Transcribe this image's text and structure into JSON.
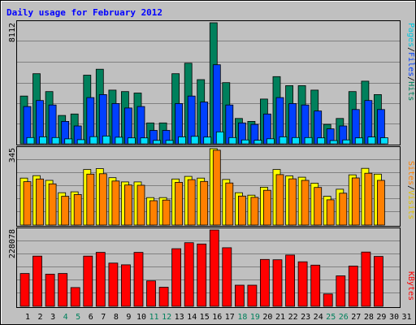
{
  "chart_data": [
    {
      "type": "bar",
      "title": "Daily usage for February 2012",
      "ymax_label": "8112",
      "categories": [
        "1",
        "2",
        "3",
        "4",
        "5",
        "6",
        "7",
        "8",
        "9",
        "10",
        "11",
        "12",
        "13",
        "14",
        "15",
        "16",
        "17",
        "18",
        "19",
        "20",
        "21",
        "22",
        "23",
        "24",
        "25",
        "26",
        "27",
        "28",
        "29",
        "30",
        "31"
      ],
      "weekend_days": [
        "4",
        "5",
        "11",
        "12",
        "18",
        "19",
        "25",
        "26"
      ],
      "ylim": [
        0,
        8112
      ],
      "series": [
        {
          "name": "Hits",
          "color": "#00805C",
          "values": [
            3200,
            4700,
            3500,
            1900,
            2000,
            4600,
            5000,
            3600,
            3500,
            3400,
            1400,
            1400,
            4700,
            5400,
            4300,
            8112,
            4100,
            1700,
            1500,
            3000,
            4500,
            3900,
            3900,
            3600,
            1300,
            1700,
            3500,
            4200,
            3300,
            0,
            0
          ]
        },
        {
          "name": "Files",
          "color": "#0040FF",
          "values": [
            2500,
            2900,
            2600,
            1500,
            1200,
            3100,
            3300,
            2700,
            2400,
            2500,
            900,
            900,
            2700,
            3200,
            2800,
            5300,
            2600,
            1400,
            1300,
            2000,
            3100,
            2700,
            2600,
            2200,
            1000,
            1200,
            2300,
            2900,
            2300,
            0,
            0
          ]
        },
        {
          "name": "Pages",
          "color": "#00E0FF",
          "values": [
            420,
            470,
            420,
            330,
            280,
            480,
            520,
            440,
            400,
            400,
            230,
            230,
            470,
            500,
            450,
            800,
            420,
            260,
            240,
            340,
            470,
            420,
            420,
            400,
            220,
            260,
            400,
            460,
            410,
            0,
            0
          ]
        }
      ],
      "legend": [
        {
          "text": "Pages",
          "color": "#00C8E0"
        },
        {
          "text": "Files",
          "color": "#0040FF"
        },
        {
          "text": "Hits",
          "color": "#00805C"
        }
      ]
    },
    {
      "type": "bar",
      "ymax_label": "345",
      "ylim": [
        0,
        345
      ],
      "series": [
        {
          "name": "Visits",
          "color": "#FFFF00",
          "values": [
            212,
            223,
            202,
            146,
            150,
            251,
            255,
            214,
            195,
            195,
            124,
            124,
            208,
            220,
            212,
            345,
            206,
            146,
            135,
            171,
            251,
            222,
            216,
            189,
            130,
            162,
            227,
            256,
            230,
            0,
            0
          ]
        },
        {
          "name": "Sites",
          "color": "#FF8000",
          "values": [
            196,
            208,
            186,
            130,
            138,
            230,
            232,
            199,
            181,
            180,
            110,
            113,
            193,
            205,
            197,
            338,
            190,
            131,
            125,
            157,
            228,
            209,
            202,
            170,
            114,
            144,
            213,
            234,
            202,
            0,
            0
          ]
        }
      ],
      "legend": [
        {
          "text": "Sites",
          "color": "#FF8000"
        },
        {
          "text": "Visits",
          "color": "#E0C000"
        }
      ]
    },
    {
      "type": "bar",
      "ymax_label": "228078",
      "ylim": [
        0,
        228078
      ],
      "series": [
        {
          "name": "KBytes",
          "color": "#FF0000",
          "values": [
            98000,
            150000,
            96000,
            98000,
            56000,
            150000,
            161000,
            129000,
            124000,
            161000,
            76000,
            57000,
            172000,
            190000,
            186000,
            228078,
            175000,
            63000,
            63000,
            140000,
            139000,
            153000,
            133000,
            123000,
            37000,
            91000,
            120000,
            162000,
            149000,
            0,
            0
          ]
        }
      ],
      "legend": [
        {
          "text": "KBytes",
          "color": "#FF0000"
        }
      ]
    }
  ]
}
